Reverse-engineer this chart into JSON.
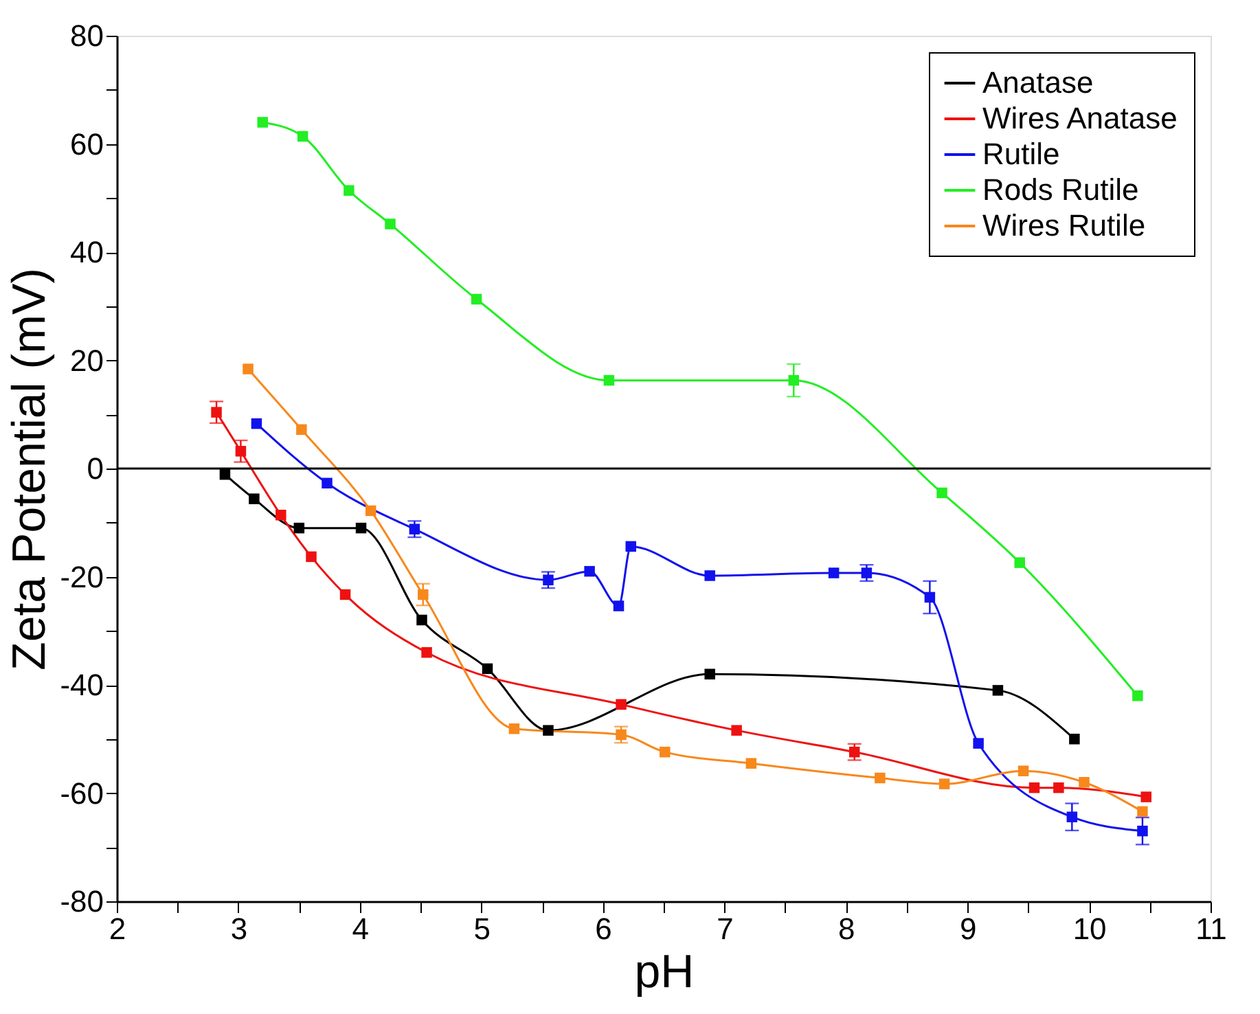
{
  "chart_data": {
    "type": "line",
    "xlabel": "pH",
    "ylabel": "Zeta Potential (mV)",
    "xlim": [
      2,
      11
    ],
    "ylim": [
      -80,
      80
    ],
    "xticks": [
      2,
      {
        "value": 2.5,
        "label": null
      },
      3,
      {
        "value": 3.5,
        "label": null
      },
      4,
      {
        "value": 4.5,
        "label": null
      },
      5,
      {
        "value": 5.5,
        "label": null
      },
      6,
      {
        "value": 6.5,
        "label": null
      },
      7,
      {
        "value": 7.5,
        "label": null
      },
      8,
      {
        "value": 8.5,
        "label": null
      },
      9,
      {
        "value": 9.5,
        "label": null
      },
      10,
      {
        "value": 10.5,
        "label": null
      },
      11
    ],
    "yticks": [
      -80,
      {
        "value": -70,
        "label": null
      },
      -60,
      {
        "value": -50,
        "label": null
      },
      -40,
      {
        "value": -30,
        "label": null
      },
      -20,
      {
        "value": -10,
        "label": null
      },
      0,
      {
        "value": 10,
        "label": null
      },
      20,
      {
        "value": 30,
        "label": null
      },
      40,
      {
        "value": 50,
        "label": null
      },
      60,
      {
        "value": 70,
        "label": null
      },
      80
    ],
    "marker": "square",
    "line_style": "solid",
    "grid": false,
    "legend": "top right",
    "ref_lines": [
      {
        "axis": "y",
        "value": 0,
        "color": "#000000"
      }
    ],
    "series": [
      {
        "name": "Anatase",
        "color": "#000000",
        "x": [
          2.89,
          3.13,
          3.5,
          4.01,
          4.51,
          5.05,
          5.55,
          6.88,
          9.25,
          9.88
        ],
        "values": [
          -1.1,
          -5.6,
          -11,
          -11,
          -28,
          -37,
          -48.4,
          -38,
          -41,
          -50
        ]
      },
      {
        "name": "Wires Anatase",
        "color": "#ee1111",
        "x": [
          2.82,
          3.02,
          3.35,
          3.6,
          3.88,
          4.55,
          6.15,
          7.1,
          8.07,
          9.55,
          9.75,
          10.47
        ],
        "values": [
          10.4,
          3.2,
          -8.6,
          -16.3,
          -23.3,
          -34,
          -43.6,
          -48.4,
          -52.4,
          -59,
          -59,
          -60.7
        ],
        "errors": [
          2,
          2,
          null,
          null,
          null,
          null,
          null,
          null,
          1.5,
          null,
          null,
          null
        ]
      },
      {
        "name": "Rutile",
        "color": "#1111ee",
        "x": [
          3.15,
          3.73,
          4.45,
          5.55,
          5.89,
          6.13,
          6.23,
          6.88,
          7.9,
          8.17,
          8.69,
          9.09,
          9.86,
          10.44
        ],
        "values": [
          8.3,
          -2.7,
          -11.2,
          -20.6,
          -19,
          -25.4,
          -14.4,
          -19.8,
          -19.3,
          -19.3,
          -23.8,
          -50.8,
          -64.4,
          -67
        ],
        "errors": [
          null,
          null,
          1.5,
          1.5,
          null,
          null,
          null,
          null,
          null,
          1.5,
          3,
          null,
          2.5,
          2.5
        ]
      },
      {
        "name": "Rods Rutile",
        "color": "#22ee22",
        "x": [
          3.2,
          3.53,
          3.91,
          4.25,
          4.96,
          6.05,
          7.57,
          8.79,
          9.43,
          10.4
        ],
        "values": [
          64,
          61.4,
          51.4,
          45.2,
          31.3,
          16.3,
          16.3,
          -4.5,
          -17.4,
          -42
        ],
        "errors": [
          null,
          null,
          null,
          null,
          null,
          null,
          3,
          null,
          null,
          null
        ]
      },
      {
        "name": "Wires Rutile",
        "color": "#f7881c",
        "x": [
          3.08,
          3.52,
          4.09,
          4.52,
          5.27,
          6.15,
          6.51,
          7.22,
          8.28,
          8.81,
          9.46,
          9.96,
          10.44
        ],
        "values": [
          18.4,
          7.2,
          -7.8,
          -23.3,
          -48.1,
          -49.2,
          -52.4,
          -54.5,
          -57.2,
          -58.3,
          -55.9,
          -58,
          -63.4
        ],
        "errors": [
          null,
          null,
          null,
          2,
          null,
          1.5,
          null,
          null,
          null,
          null,
          null,
          null,
          null
        ]
      }
    ]
  }
}
